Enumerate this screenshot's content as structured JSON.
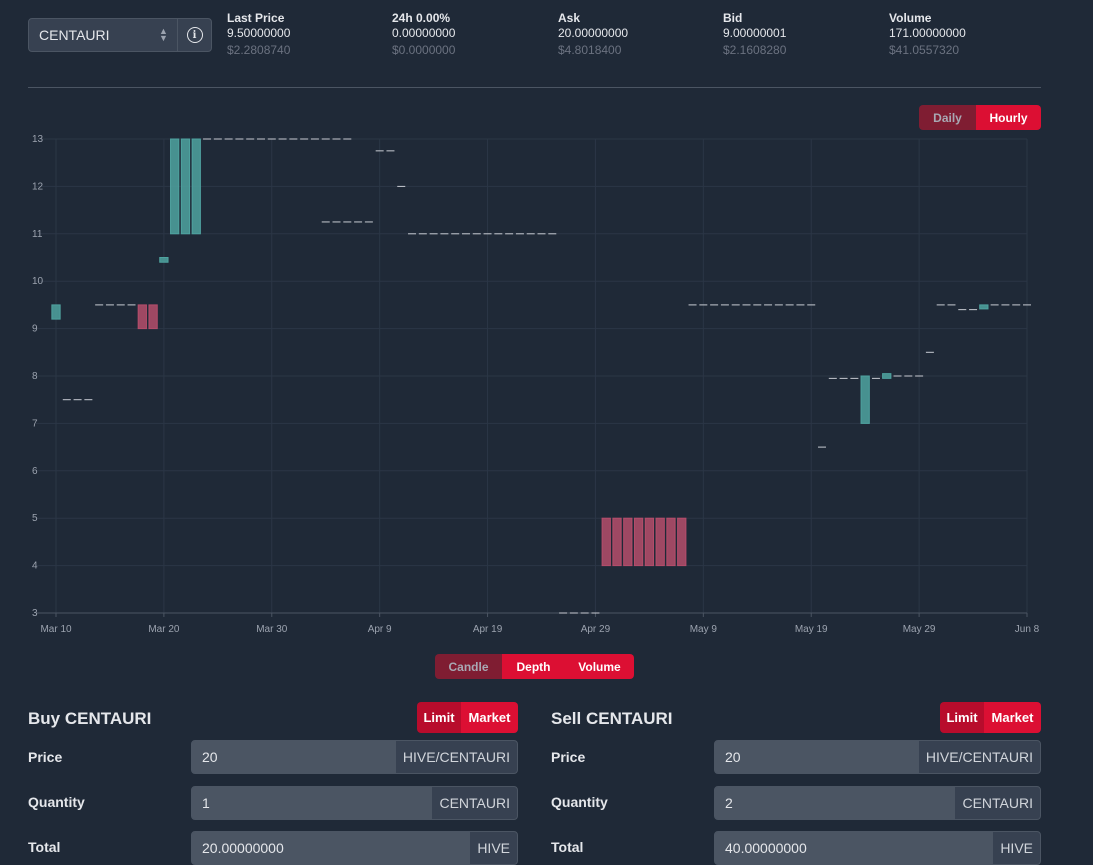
{
  "token_selector": {
    "value": "CENTAURI",
    "info_icon": "info-icon"
  },
  "ticker": [
    {
      "label": "Last Price",
      "value": "9.50000000",
      "usd": "$2.2808740"
    },
    {
      "label": "24h 0.00%",
      "value": "0.00000000",
      "usd": "$0.0000000"
    },
    {
      "label": "Ask",
      "value": "20.00000000",
      "usd": "$4.8018400"
    },
    {
      "label": "Bid",
      "value": "9.00000001",
      "usd": "$2.1608280"
    },
    {
      "label": "Volume",
      "value": "171.00000000",
      "usd": "$41.0557320"
    }
  ],
  "interval_toggle": {
    "daily": "Daily",
    "hourly": "Hourly",
    "selected": "Hourly"
  },
  "view_toggle": {
    "candle": "Candle",
    "depth": "Depth",
    "volume": "Volume"
  },
  "colors": {
    "up": "#4fa3a0",
    "down": "#b54d6b",
    "accent": "#dc0f33",
    "accent_dim": "#7f1d32"
  },
  "chart_data": {
    "type": "candlestick",
    "x_ticks": [
      "Mar 10",
      "Mar 20",
      "Mar 30",
      "Apr 9",
      "Apr 19",
      "Apr 29",
      "May 9",
      "May 19",
      "May 29",
      "Jun 8"
    ],
    "y_ticks": [
      3,
      4,
      5,
      6,
      7,
      8,
      9,
      10,
      11,
      12,
      13
    ],
    "ylim": [
      3,
      13
    ],
    "xlim": [
      "2023-03-10",
      "2023-06-08"
    ],
    "grid": true,
    "candles": [
      {
        "date": "2023-03-10",
        "open": 9.2,
        "close": 9.5,
        "dir": "up"
      },
      {
        "date": "2023-03-18",
        "open": 9.5,
        "close": 9.0,
        "dir": "down"
      },
      {
        "date": "2023-03-19",
        "open": 9.5,
        "close": 9.0,
        "dir": "down"
      },
      {
        "date": "2023-03-20",
        "open": 10.4,
        "close": 10.5,
        "dir": "up"
      },
      {
        "date": "2023-03-21",
        "open": 11.0,
        "close": 13.0,
        "dir": "up"
      },
      {
        "date": "2023-03-22",
        "open": 11.0,
        "close": 13.0,
        "dir": "up"
      },
      {
        "date": "2023-03-23",
        "open": 11.0,
        "close": 13.0,
        "dir": "up"
      },
      {
        "date": "2023-04-30",
        "open": 5.0,
        "close": 4.0,
        "dir": "down"
      },
      {
        "date": "2023-05-01",
        "open": 5.0,
        "close": 4.0,
        "dir": "down"
      },
      {
        "date": "2023-05-02",
        "open": 5.0,
        "close": 4.0,
        "dir": "down"
      },
      {
        "date": "2023-05-03",
        "open": 5.0,
        "close": 4.0,
        "dir": "down"
      },
      {
        "date": "2023-05-04",
        "open": 5.0,
        "close": 4.0,
        "dir": "down"
      },
      {
        "date": "2023-05-05",
        "open": 5.0,
        "close": 4.0,
        "dir": "down"
      },
      {
        "date": "2023-05-06",
        "open": 5.0,
        "close": 4.0,
        "dir": "down"
      },
      {
        "date": "2023-05-07",
        "open": 5.0,
        "close": 4.0,
        "dir": "down"
      },
      {
        "date": "2023-05-24",
        "open": 7.0,
        "close": 8.0,
        "dir": "up"
      },
      {
        "date": "2023-05-26",
        "open": 7.95,
        "close": 8.05,
        "dir": "up"
      },
      {
        "date": "2023-06-04",
        "open": 9.45,
        "close": 9.5,
        "dir": "up"
      }
    ],
    "flat_segments": [
      {
        "from": "2023-03-11",
        "to": "2023-03-13",
        "price": 7.5
      },
      {
        "from": "2023-03-14",
        "to": "2023-03-17",
        "price": 9.5
      },
      {
        "from": "2023-03-24",
        "to": "2023-04-06",
        "price": 13.0
      },
      {
        "from": "2023-04-04",
        "to": "2023-04-08",
        "price": 11.25
      },
      {
        "from": "2023-04-09",
        "to": "2023-04-10",
        "price": 12.75
      },
      {
        "from": "2023-04-11",
        "to": "2023-04-11",
        "price": 12.0
      },
      {
        "from": "2023-04-12",
        "to": "2023-04-25",
        "price": 11.0
      },
      {
        "from": "2023-04-26",
        "to": "2023-04-29",
        "price": 3.0
      },
      {
        "from": "2023-05-08",
        "to": "2023-05-19",
        "price": 9.5
      },
      {
        "from": "2023-05-20",
        "to": "2023-05-20",
        "price": 6.5
      },
      {
        "from": "2023-05-21",
        "to": "2023-05-23",
        "price": 7.95
      },
      {
        "from": "2023-05-25",
        "to": "2023-05-25",
        "price": 7.95
      },
      {
        "from": "2023-05-27",
        "to": "2023-05-29",
        "price": 8.0
      },
      {
        "from": "2023-05-30",
        "to": "2023-05-30",
        "price": 8.5
      },
      {
        "from": "2023-05-31",
        "to": "2023-06-01",
        "price": 9.5
      },
      {
        "from": "2023-06-02",
        "to": "2023-06-03",
        "price": 9.4
      },
      {
        "from": "2023-06-05",
        "to": "2023-06-08",
        "price": 9.5
      }
    ]
  },
  "buy": {
    "title": "Buy CENTAURI",
    "limit": "Limit",
    "market": "Market",
    "price_label": "Price",
    "price": "20",
    "price_unit": "HIVE/CENTAURI",
    "quantity_label": "Quantity",
    "quantity": "1",
    "quantity_unit": "CENTAURI",
    "total_label": "Total",
    "total": "20.00000000",
    "total_unit": "HIVE"
  },
  "sell": {
    "title": "Sell CENTAURI",
    "limit": "Limit",
    "market": "Market",
    "price_label": "Price",
    "price": "20",
    "price_unit": "HIVE/CENTAURI",
    "quantity_label": "Quantity",
    "quantity": "2",
    "quantity_unit": "CENTAURI",
    "total_label": "Total",
    "total": "40.00000000",
    "total_unit": "HIVE"
  }
}
